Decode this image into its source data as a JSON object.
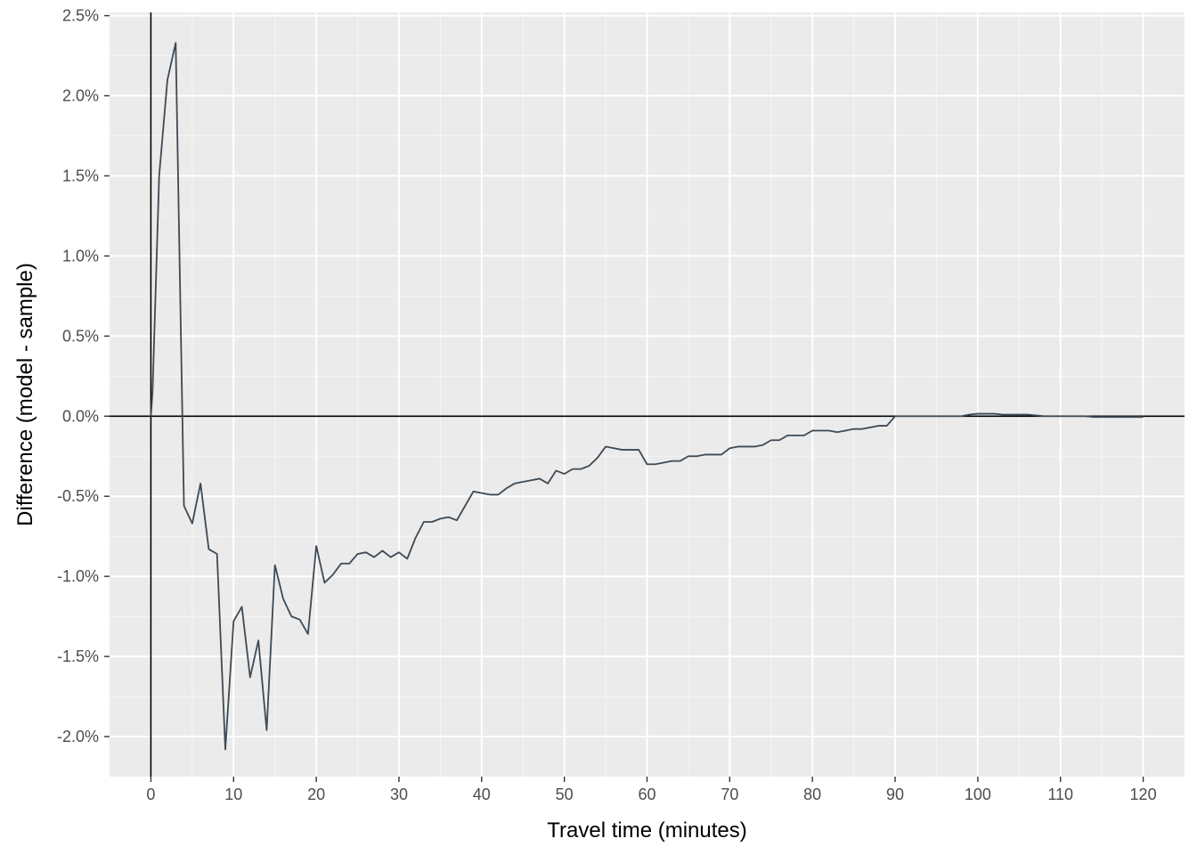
{
  "chart_data": {
    "type": "line",
    "title": "",
    "xlabel": "Travel time (minutes)",
    "ylabel": "Difference (model - sample)",
    "xlim": [
      -5,
      125
    ],
    "ylim": [
      -2.25,
      2.52
    ],
    "grid": true,
    "legend": "none",
    "x_ticks": [
      0,
      10,
      20,
      30,
      40,
      50,
      60,
      70,
      80,
      90,
      100,
      110,
      120
    ],
    "x_tick_labels": [
      "0",
      "10",
      "20",
      "30",
      "40",
      "50",
      "60",
      "70",
      "80",
      "90",
      "100",
      "110",
      "120"
    ],
    "y_ticks": [
      -2.0,
      -1.5,
      -1.0,
      -0.5,
      0.0,
      0.5,
      1.0,
      1.5,
      2.0,
      2.5
    ],
    "y_tick_labels": [
      "-2.0%",
      "-1.5%",
      "-1.0%",
      "-0.5%",
      "0.0%",
      "0.5%",
      "1.0%",
      "1.5%",
      "2.0%",
      "2.5%"
    ],
    "reference_lines": {
      "x": 0,
      "y": 0,
      "color": "#000000"
    },
    "series": [
      {
        "color": "#3d4a55",
        "points": [
          [
            0,
            0.0
          ],
          [
            0.2,
            0.15
          ],
          [
            1,
            1.5
          ],
          [
            2,
            2.1
          ],
          [
            3,
            2.33
          ],
          [
            4,
            -0.56
          ],
          [
            5,
            -0.67
          ],
          [
            6,
            -0.42
          ],
          [
            7,
            -0.83
          ],
          [
            8,
            -0.86
          ],
          [
            9,
            -2.08
          ],
          [
            10,
            -1.28
          ],
          [
            11,
            -1.19
          ],
          [
            12,
            -1.63
          ],
          [
            13,
            -1.4
          ],
          [
            14,
            -1.96
          ],
          [
            15,
            -0.93
          ],
          [
            16,
            -1.14
          ],
          [
            17,
            -1.25
          ],
          [
            18,
            -1.27
          ],
          [
            19,
            -1.36
          ],
          [
            20,
            -0.81
          ],
          [
            21,
            -1.04
          ],
          [
            22,
            -0.99
          ],
          [
            23,
            -0.92
          ],
          [
            24,
            -0.92
          ],
          [
            25,
            -0.86
          ],
          [
            26,
            -0.85
          ],
          [
            27,
            -0.88
          ],
          [
            28,
            -0.84
          ],
          [
            29,
            -0.88
          ],
          [
            30,
            -0.85
          ],
          [
            31,
            -0.89
          ],
          [
            32,
            -0.76
          ],
          [
            33,
            -0.66
          ],
          [
            34,
            -0.66
          ],
          [
            35,
            -0.64
          ],
          [
            36,
            -0.63
          ],
          [
            37,
            -0.65
          ],
          [
            38,
            -0.56
          ],
          [
            39,
            -0.47
          ],
          [
            40,
            -0.48
          ],
          [
            41,
            -0.49
          ],
          [
            42,
            -0.49
          ],
          [
            43,
            -0.45
          ],
          [
            44,
            -0.42
          ],
          [
            45,
            -0.41
          ],
          [
            46,
            -0.4
          ],
          [
            47,
            -0.39
          ],
          [
            48,
            -0.42
          ],
          [
            49,
            -0.34
          ],
          [
            50,
            -0.36
          ],
          [
            51,
            -0.33
          ],
          [
            52,
            -0.33
          ],
          [
            53,
            -0.31
          ],
          [
            54,
            -0.26
          ],
          [
            55,
            -0.19
          ],
          [
            56,
            -0.2
          ],
          [
            57,
            -0.21
          ],
          [
            58,
            -0.21
          ],
          [
            59,
            -0.21
          ],
          [
            60,
            -0.3
          ],
          [
            61,
            -0.3
          ],
          [
            62,
            -0.29
          ],
          [
            63,
            -0.28
          ],
          [
            64,
            -0.28
          ],
          [
            65,
            -0.25
          ],
          [
            66,
            -0.25
          ],
          [
            67,
            -0.24
          ],
          [
            68,
            -0.24
          ],
          [
            69,
            -0.24
          ],
          [
            70,
            -0.2
          ],
          [
            71,
            -0.19
          ],
          [
            72,
            -0.19
          ],
          [
            73,
            -0.19
          ],
          [
            74,
            -0.18
          ],
          [
            75,
            -0.15
          ],
          [
            76,
            -0.15
          ],
          [
            77,
            -0.12
          ],
          [
            78,
            -0.12
          ],
          [
            79,
            -0.12
          ],
          [
            80,
            -0.09
          ],
          [
            81,
            -0.09
          ],
          [
            82,
            -0.09
          ],
          [
            83,
            -0.1
          ],
          [
            84,
            -0.09
          ],
          [
            85,
            -0.08
          ],
          [
            86,
            -0.08
          ],
          [
            87,
            -0.07
          ],
          [
            88,
            -0.06
          ],
          [
            89,
            -0.06
          ],
          [
            90,
            0.0
          ],
          [
            91,
            0.0
          ],
          [
            92,
            0.0
          ],
          [
            93,
            0.0
          ],
          [
            94,
            0.0
          ],
          [
            95,
            0.0
          ],
          [
            96,
            0.0
          ],
          [
            97,
            0.0
          ],
          [
            98,
            0.0
          ],
          [
            99,
            0.01
          ],
          [
            100,
            0.015
          ],
          [
            101,
            0.015
          ],
          [
            102,
            0.015
          ],
          [
            103,
            0.01
          ],
          [
            104,
            0.01
          ],
          [
            105,
            0.01
          ],
          [
            106,
            0.01
          ],
          [
            107,
            0.005
          ],
          [
            108,
            0.0
          ],
          [
            109,
            0.0
          ],
          [
            110,
            0.0
          ],
          [
            111,
            0.0
          ],
          [
            112,
            0.0
          ],
          [
            113,
            0.0
          ],
          [
            114,
            -0.005
          ],
          [
            115,
            -0.005
          ],
          [
            116,
            -0.005
          ],
          [
            117,
            -0.005
          ],
          [
            118,
            -0.005
          ],
          [
            119,
            -0.005
          ],
          [
            120,
            -0.005
          ]
        ]
      }
    ]
  }
}
